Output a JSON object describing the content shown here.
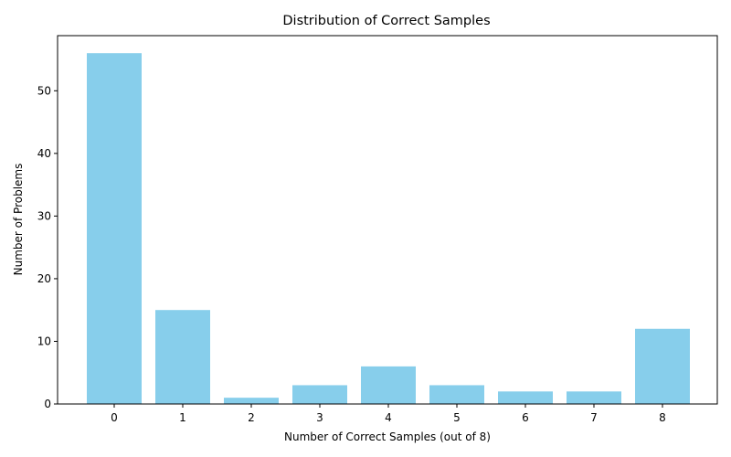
{
  "chart_data": {
    "type": "bar",
    "title": "Distribution of Correct Samples",
    "xlabel": "Number of Correct Samples (out of 8)",
    "ylabel": "Number of Problems",
    "categories": [
      "0",
      "1",
      "2",
      "3",
      "4",
      "5",
      "6",
      "7",
      "8"
    ],
    "values": [
      56,
      15,
      1,
      3,
      6,
      3,
      2,
      2,
      12
    ],
    "ylim": [
      0,
      58.8
    ],
    "yticks": [
      0,
      10,
      20,
      30,
      40,
      50
    ],
    "bar_color": "#87ceeb",
    "grid": false,
    "legend": "none"
  }
}
